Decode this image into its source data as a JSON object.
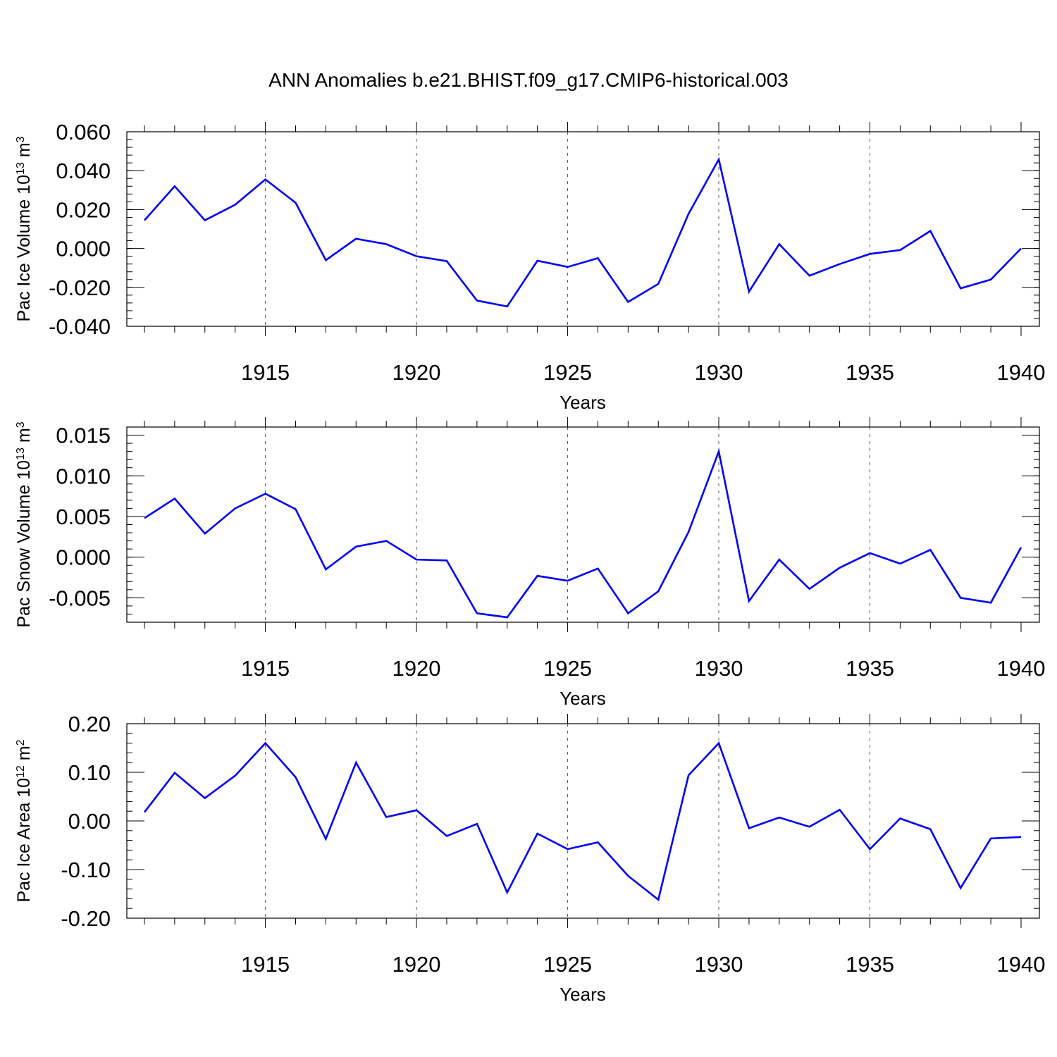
{
  "title": "ANN Anomalies b.e21.BHIST.f09_g17.CMIP6-historical.003",
  "line_color": "#0000ff",
  "chart_data": [
    {
      "type": "line",
      "ylabel": "Pac Ice Volume 10",
      "ylabel_exponent": "13",
      "ylabel_unit": " m",
      "ylabel_unit_exponent": "3",
      "xlabel": "Years",
      "xlim": [
        1911,
        1940
      ],
      "ylim": [
        -0.04,
        0.06
      ],
      "yticks": [
        -0.04,
        -0.02,
        0.0,
        0.02,
        0.04,
        0.06
      ],
      "ytick_labels": [
        "-0.040",
        "-0.020",
        "0.000",
        "0.020",
        "0.040",
        "0.060"
      ],
      "xticks": [
        1915,
        1920,
        1925,
        1930,
        1935,
        1940
      ],
      "xtick_labels": [
        "1915",
        "1920",
        "1925",
        "1930",
        "1935",
        "1940"
      ],
      "x": [
        1911,
        1912,
        1913,
        1914,
        1915,
        1916,
        1917,
        1918,
        1919,
        1920,
        1921,
        1922,
        1923,
        1924,
        1925,
        1926,
        1927,
        1928,
        1929,
        1930,
        1931,
        1932,
        1933,
        1934,
        1935,
        1936,
        1937,
        1938,
        1939,
        1940
      ],
      "series": [
        {
          "values": [
            0.0145,
            0.032,
            0.0145,
            0.0225,
            0.0355,
            0.0235,
            -0.006,
            0.005,
            0.0022,
            -0.004,
            -0.0065,
            -0.0268,
            -0.0298,
            -0.0063,
            -0.0095,
            -0.005,
            -0.0275,
            -0.0182,
            0.0178,
            0.0458,
            -0.0222,
            0.0022,
            -0.014,
            -0.008,
            -0.0028,
            -0.0008,
            0.009,
            -0.0205,
            -0.016,
            0.0
          ]
        }
      ],
      "grid": "dashed vertical at major x ticks"
    },
    {
      "type": "line",
      "ylabel": "Pac Snow Volume 10",
      "ylabel_exponent": "13",
      "ylabel_unit": " m",
      "ylabel_unit_exponent": "3",
      "xlabel": "Years",
      "xlim": [
        1911,
        1940
      ],
      "ylim": [
        -0.008,
        0.016
      ],
      "yticks": [
        -0.005,
        0.0,
        0.005,
        0.01,
        0.015
      ],
      "ytick_labels": [
        "-0.005",
        "0.000",
        "0.005",
        "0.010",
        "0.015"
      ],
      "xticks": [
        1915,
        1920,
        1925,
        1930,
        1935,
        1940
      ],
      "xtick_labels": [
        "1915",
        "1920",
        "1925",
        "1930",
        "1935",
        "1940"
      ],
      "x": [
        1911,
        1912,
        1913,
        1914,
        1915,
        1916,
        1917,
        1918,
        1919,
        1920,
        1921,
        1922,
        1923,
        1924,
        1925,
        1926,
        1927,
        1928,
        1929,
        1930,
        1931,
        1932,
        1933,
        1934,
        1935,
        1936,
        1937,
        1938,
        1939,
        1940
      ],
      "series": [
        {
          "values": [
            0.0048,
            0.0072,
            0.0029,
            0.006,
            0.0078,
            0.0059,
            -0.0015,
            0.0013,
            0.002,
            -0.0003,
            -0.0004,
            -0.0069,
            -0.0074,
            -0.0023,
            -0.0029,
            -0.0014,
            -0.0069,
            -0.0042,
            0.0031,
            0.013,
            -0.0054,
            -0.0003,
            -0.0039,
            -0.0013,
            0.0005,
            -0.0008,
            0.0009,
            -0.005,
            -0.0056,
            0.0012
          ]
        }
      ],
      "grid": "dashed vertical at major x ticks"
    },
    {
      "type": "line",
      "ylabel": "Pac Ice Area 10",
      "ylabel_exponent": "12",
      "ylabel_unit": " m",
      "ylabel_unit_exponent": "2",
      "xlabel": "Years",
      "xlim": [
        1911,
        1940
      ],
      "ylim": [
        -0.2,
        0.2
      ],
      "yticks": [
        -0.2,
        -0.1,
        0.0,
        0.1,
        0.2
      ],
      "ytick_labels": [
        "-0.20",
        "-0.10",
        "0.00",
        "0.10",
        "0.20"
      ],
      "xticks": [
        1915,
        1920,
        1925,
        1930,
        1935,
        1940
      ],
      "xtick_labels": [
        "1915",
        "1920",
        "1925",
        "1930",
        "1935",
        "1940"
      ],
      "x": [
        1911,
        1912,
        1913,
        1914,
        1915,
        1916,
        1917,
        1918,
        1919,
        1920,
        1921,
        1922,
        1923,
        1924,
        1925,
        1926,
        1927,
        1928,
        1929,
        1930,
        1931,
        1932,
        1933,
        1934,
        1935,
        1936,
        1937,
        1938,
        1939,
        1940
      ],
      "series": [
        {
          "values": [
            0.018,
            0.099,
            0.047,
            0.093,
            0.16,
            0.09,
            -0.037,
            0.12,
            0.008,
            0.022,
            -0.031,
            -0.006,
            -0.147,
            -0.026,
            -0.058,
            -0.044,
            -0.113,
            -0.162,
            0.094,
            0.16,
            -0.015,
            0.007,
            -0.012,
            0.023,
            -0.058,
            0.005,
            -0.017,
            -0.138,
            -0.036,
            -0.033
          ]
        }
      ],
      "grid": "dashed vertical at major x ticks"
    }
  ]
}
